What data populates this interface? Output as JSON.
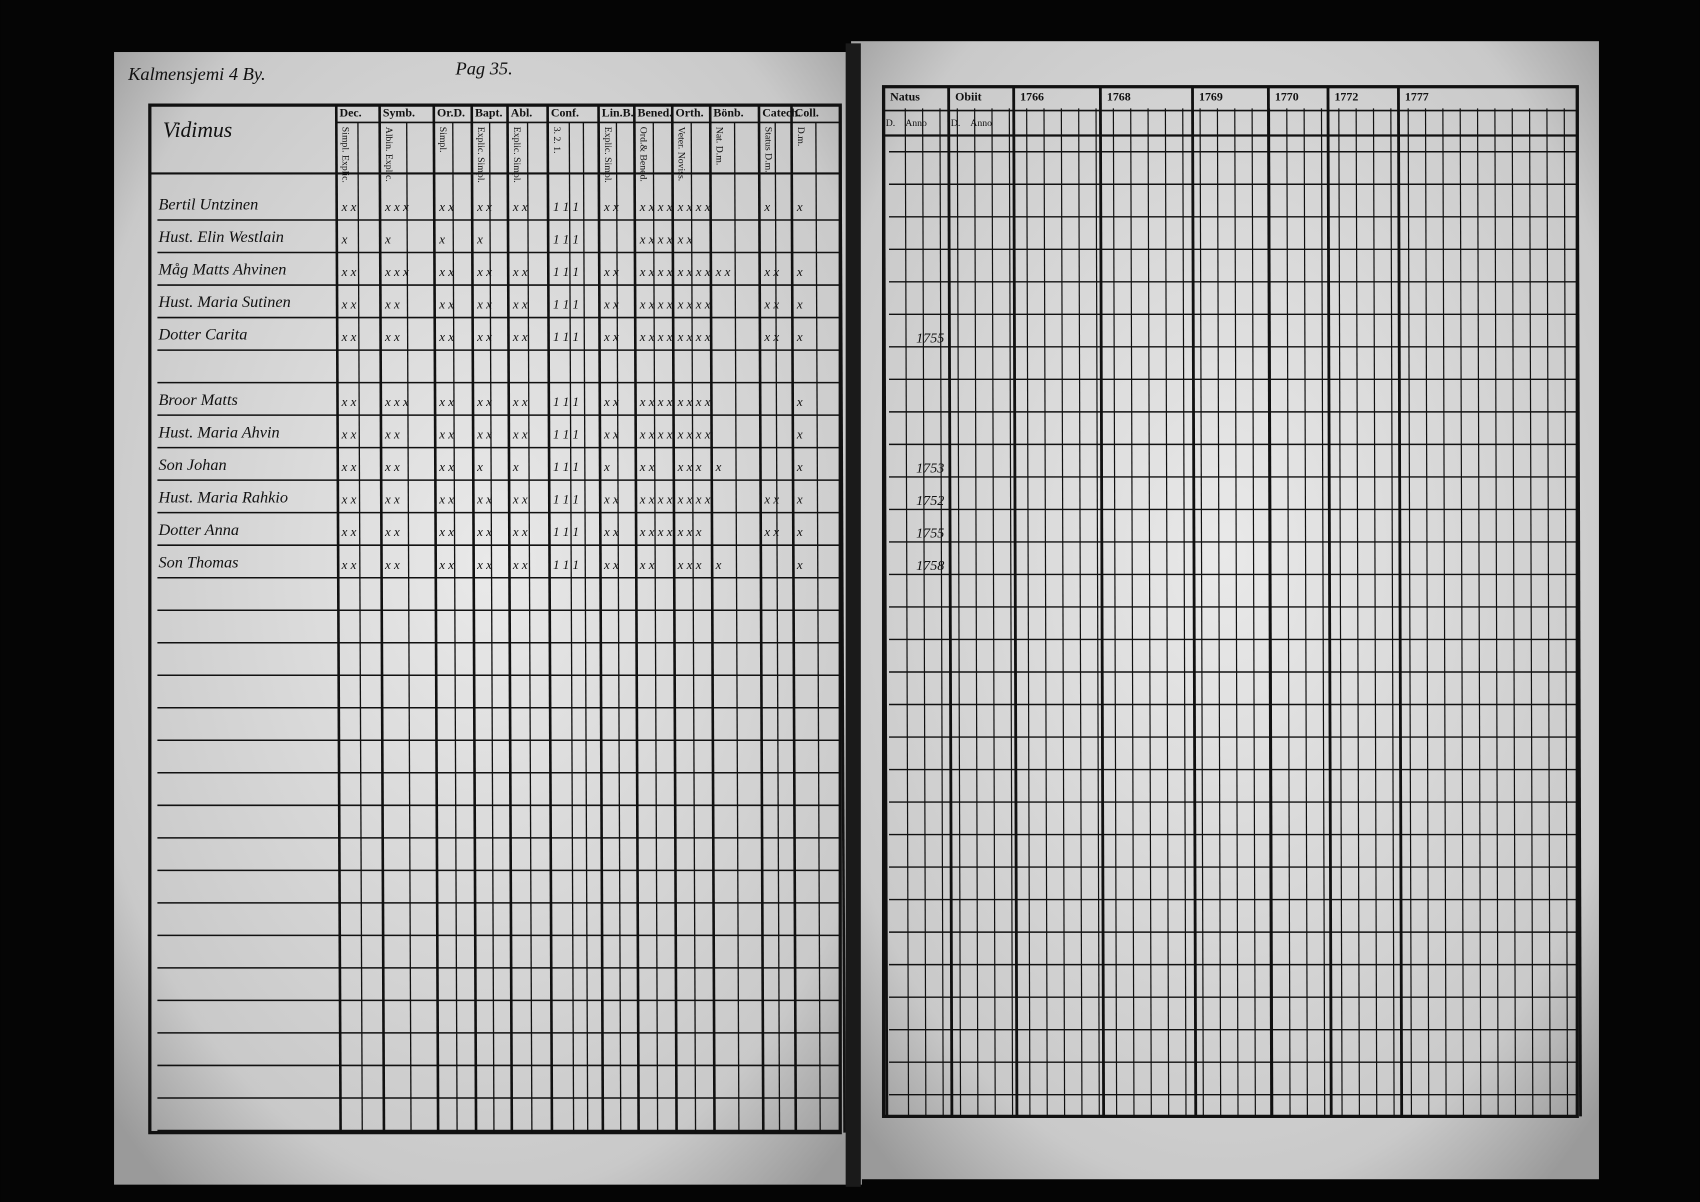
{
  "header": {
    "place": "Kalmensjemi 4 By.",
    "page": "Pag 35."
  },
  "left_table": {
    "title": "Vidimus",
    "columns": [
      "Dec.",
      "Symb.",
      "Or.D.",
      "Bapt.",
      "Abl.",
      "Conf.",
      "Lin.B.",
      "Bened.",
      "Orth.",
      "Bönb.",
      "Catech.",
      "Coll."
    ],
    "subcolumns": [
      "Simpl. Explic.",
      "Albin. Explic.",
      "Simpl.",
      "Explic. Simpl.",
      "Explic. Simpl.",
      "3. 2. 1.",
      "Explic. Simpl.",
      "Ord.& Bened.",
      "Veter. Noviss.",
      "Nat. D.m.",
      "Status D.m.",
      "D.m."
    ],
    "rows": [
      {
        "name": "Bertil Untzinen",
        "cells": [
          "x x",
          "x x x",
          "x x",
          "x x",
          "x x",
          "1 1 1",
          "x x",
          "x x x x",
          "x x x x",
          "",
          "x",
          "x"
        ]
      },
      {
        "name": "Hust. Elin Westlain",
        "cells": [
          "x",
          "x",
          "x",
          "x",
          "",
          "1 1 1",
          "",
          "x x x x",
          "x x",
          "",
          "",
          ""
        ]
      },
      {
        "name": "Måg Matts Ahvinen",
        "cells": [
          "x x",
          "x x x",
          "x x",
          "x x",
          "x x",
          "1 1 1",
          "x x",
          "x x x x",
          "x x x x",
          "x x",
          "x x",
          "x"
        ]
      },
      {
        "name": "Hust. Maria Sutinen",
        "cells": [
          "x x",
          "x x",
          "x x",
          "x x",
          "x x",
          "1 1 1",
          "x x",
          "x x x x",
          "x x x x",
          "",
          "x x",
          "x"
        ]
      },
      {
        "name": "Dotter Carita",
        "cells": [
          "x x",
          "x x",
          "x x",
          "x x",
          "x x",
          "1 1 1",
          "x x",
          "x x x x",
          "x x x x",
          "",
          "x x",
          "x"
        ]
      },
      {
        "name": "Broor Matts",
        "cells": [
          "x x",
          "x x x",
          "x x",
          "x x",
          "x x",
          "1 1 1",
          "x x",
          "x x x x",
          "x x x x",
          "",
          "",
          "x"
        ]
      },
      {
        "name": "Hust. Maria Ahvin",
        "cells": [
          "x x",
          "x x",
          "x x",
          "x x",
          "x x",
          "1 1 1",
          "x x",
          "x x x x",
          "x x x x",
          "",
          "",
          "x"
        ]
      },
      {
        "name": "Son Johan",
        "cells": [
          "x x",
          "x x",
          "x x",
          "x",
          "x",
          "1 1 1",
          "x",
          "x x",
          "x x x",
          "x",
          "",
          "x"
        ]
      },
      {
        "name": "Hust. Maria Rahkio",
        "cells": [
          "x x",
          "x x",
          "x x",
          "x x",
          "x x",
          "1 1 1",
          "x x",
          "x x x x",
          "x x x x",
          "",
          "x x",
          "x"
        ]
      },
      {
        "name": "Dotter Anna",
        "cells": [
          "x x",
          "x x",
          "x x",
          "x x",
          "x x",
          "1 1 1",
          "x x",
          "x x x x",
          "x x x",
          "",
          "x x",
          "x"
        ]
      },
      {
        "name": "Son Thomas",
        "cells": [
          "x x",
          "x x",
          "x x",
          "x x",
          "x x",
          "1 1 1",
          "x x",
          "x x",
          "x x x",
          "x",
          "",
          "x"
        ]
      }
    ]
  },
  "right_table": {
    "columns": [
      "Natus",
      "Obiit",
      "1766",
      "1768",
      "1769",
      "1770",
      "1772",
      "1777"
    ],
    "subcolumns": [
      "D.",
      "Anno",
      "D.",
      "Anno"
    ],
    "birth_years": [
      "",
      "",
      "",
      "",
      "1755",
      "",
      "",
      "1753",
      "1752",
      "1755",
      "1758"
    ]
  }
}
